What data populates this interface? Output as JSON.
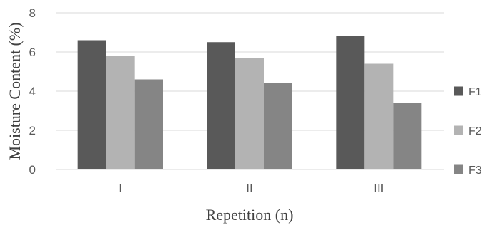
{
  "chart_data": {
    "type": "bar",
    "title": "",
    "xlabel": "Repetition (n)",
    "ylabel": "Moisture Content (%)",
    "categories": [
      "I",
      "II",
      "III"
    ],
    "series": [
      {
        "name": "F1",
        "values": [
          6.6,
          6.5,
          6.8
        ],
        "color": "#595959"
      },
      {
        "name": "F2",
        "values": [
          5.8,
          5.7,
          5.4
        ],
        "color": "#b3b3b3"
      },
      {
        "name": "F3",
        "values": [
          4.6,
          4.4,
          3.4
        ],
        "color": "#858585"
      }
    ],
    "ylim": [
      0,
      8
    ],
    "yticks": [
      0,
      2,
      4,
      6,
      8
    ],
    "grid": true,
    "legend_position": "right"
  }
}
